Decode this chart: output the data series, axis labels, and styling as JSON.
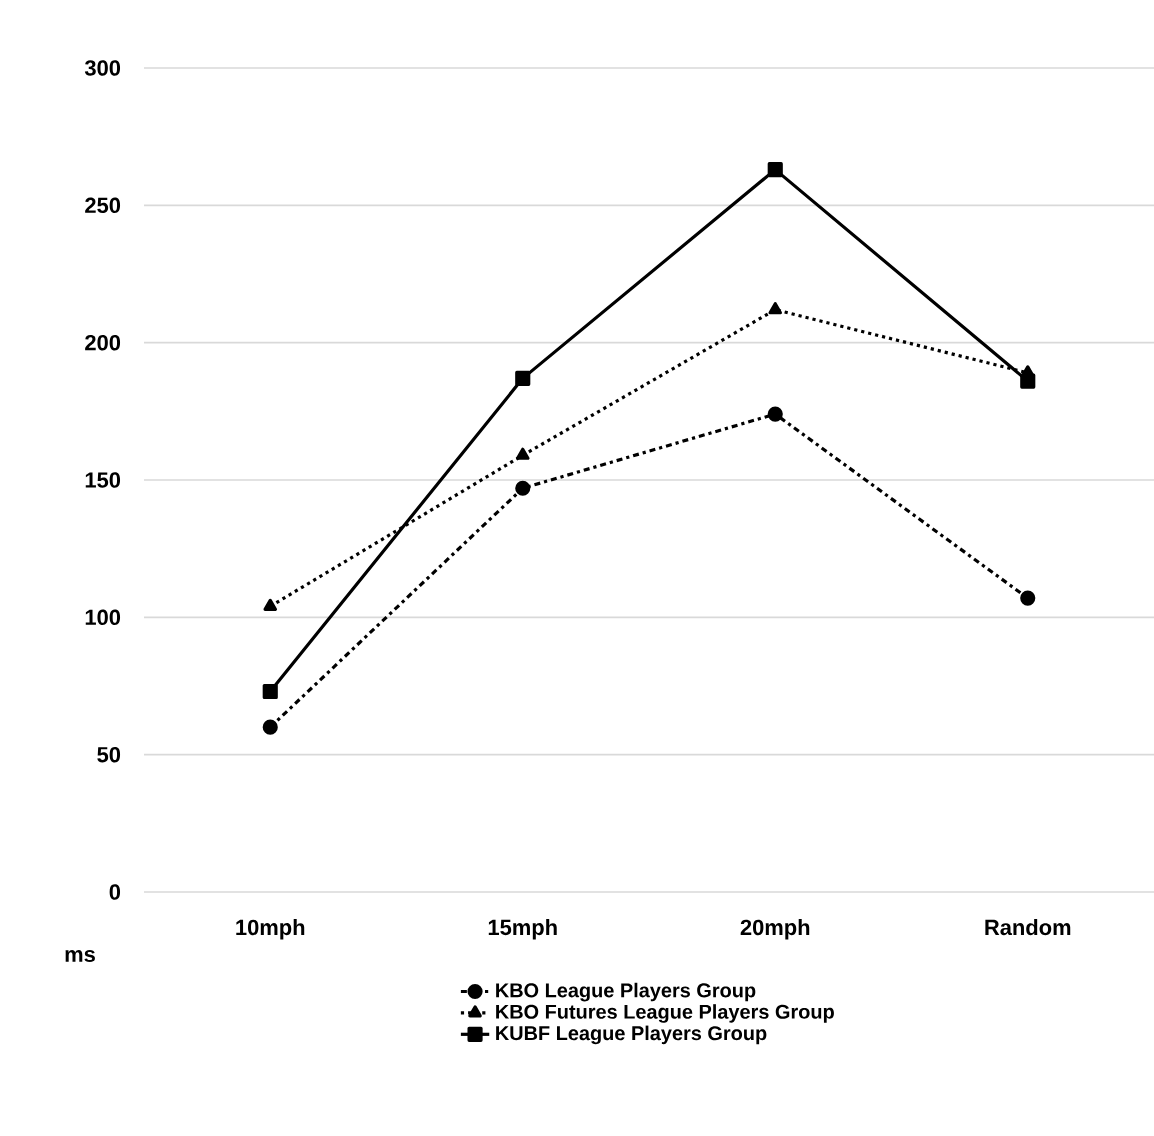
{
  "chart_data": {
    "type": "line",
    "ylabel": "ms",
    "categories": [
      "10mph",
      "15mph",
      "20mph",
      "Random"
    ],
    "series": [
      {
        "name": "KBO League Players Group",
        "color": "#000000",
        "marker": "circle",
        "line_style": "dashdot",
        "values": [
          60,
          147,
          174,
          107
        ]
      },
      {
        "name": "KBO Futures League Players Group",
        "color": "#000000",
        "marker": "triangle",
        "line_style": "dotted",
        "values": [
          104,
          159,
          212,
          189
        ]
      },
      {
        "name": "KUBF League Players Group",
        "color": "#000000",
        "marker": "square",
        "line_style": "solid",
        "values": [
          73,
          187,
          263,
          186
        ]
      }
    ],
    "ylim": [
      0,
      300
    ],
    "yticks": [
      0,
      50,
      100,
      150,
      200,
      250,
      300
    ],
    "grid": "y",
    "legend": "bottom"
  }
}
